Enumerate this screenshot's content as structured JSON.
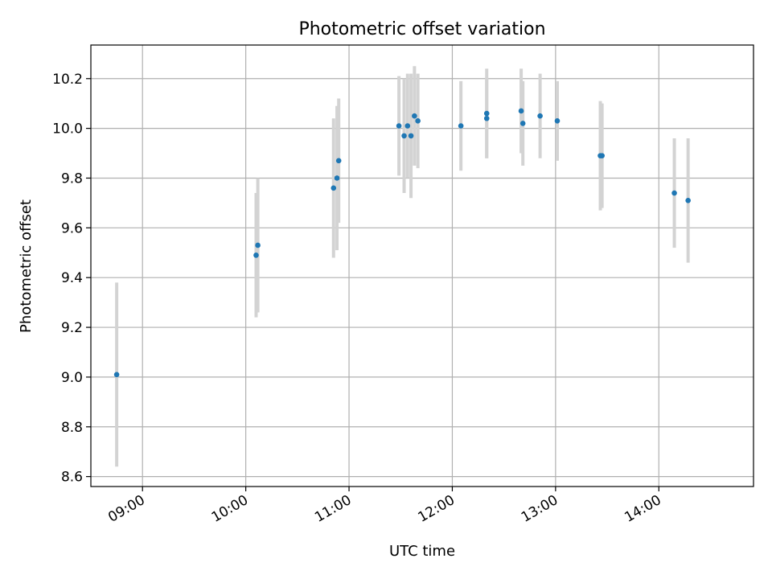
{
  "chart_data": {
    "type": "scatter",
    "title": "Photometric offset variation",
    "xlabel": "UTC time",
    "ylabel": "Photometric offset",
    "x_axis_type": "time",
    "xlim": [
      "08:30",
      "14:55"
    ],
    "ylim": [
      8.56,
      10.335
    ],
    "x_ticks": [
      "09:00",
      "10:00",
      "11:00",
      "12:00",
      "13:00",
      "14:00"
    ],
    "y_ticks": [
      8.6,
      8.8,
      9.0,
      9.2,
      9.4,
      9.6,
      9.8,
      10.0,
      10.2
    ],
    "y_tick_labels": [
      "8.6",
      "8.8",
      "9.0",
      "9.2",
      "9.4",
      "9.6",
      "9.8",
      "10.0",
      "10.2"
    ],
    "grid": true,
    "legend": "none",
    "colors": {
      "point": "#1f77b4",
      "errorbar": "#d3d3d3",
      "grid": "#b0b0b0"
    },
    "points": [
      {
        "x": "08:45",
        "y": 9.01,
        "err": 0.37
      },
      {
        "x": "10:06",
        "y": 9.49,
        "err": 0.25
      },
      {
        "x": "10:07",
        "y": 9.53,
        "err": 0.27
      },
      {
        "x": "10:51",
        "y": 9.76,
        "err": 0.28
      },
      {
        "x": "10:53",
        "y": 9.8,
        "err": 0.29
      },
      {
        "x": "10:54",
        "y": 9.87,
        "err": 0.25
      },
      {
        "x": "11:29",
        "y": 10.01,
        "err": 0.2
      },
      {
        "x": "11:32",
        "y": 9.97,
        "err": 0.23
      },
      {
        "x": "11:34",
        "y": 10.01,
        "err": 0.21
      },
      {
        "x": "11:36",
        "y": 9.97,
        "err": 0.25
      },
      {
        "x": "11:38",
        "y": 10.05,
        "err": 0.2
      },
      {
        "x": "11:40",
        "y": 10.03,
        "err": 0.19
      },
      {
        "x": "12:05",
        "y": 10.01,
        "err": 0.18
      },
      {
        "x": "12:20",
        "y": 10.04,
        "err": 0.16
      },
      {
        "x": "12:20",
        "y": 10.06,
        "err": 0.18
      },
      {
        "x": "12:40",
        "y": 10.07,
        "err": 0.17
      },
      {
        "x": "12:41",
        "y": 10.02,
        "err": 0.17
      },
      {
        "x": "12:51",
        "y": 10.05,
        "err": 0.17
      },
      {
        "x": "13:01",
        "y": 10.03,
        "err": 0.16
      },
      {
        "x": "13:26",
        "y": 9.89,
        "err": 0.22
      },
      {
        "x": "13:27",
        "y": 9.89,
        "err": 0.21
      },
      {
        "x": "14:09",
        "y": 9.74,
        "err": 0.22
      },
      {
        "x": "14:17",
        "y": 9.71,
        "err": 0.25
      }
    ]
  }
}
